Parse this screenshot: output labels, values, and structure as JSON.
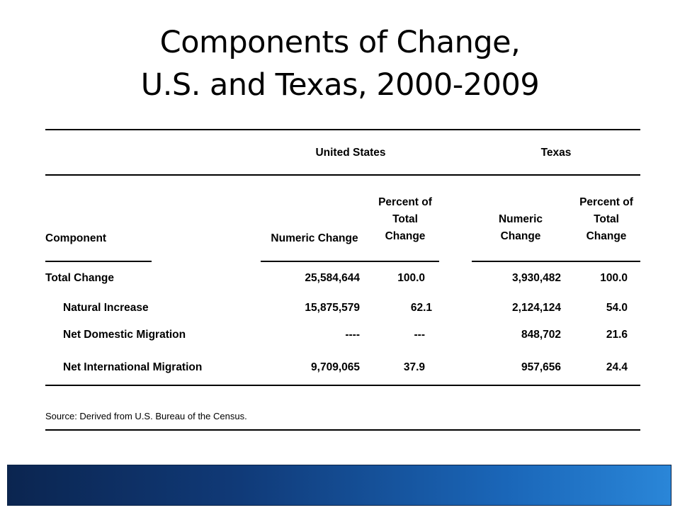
{
  "title": {
    "line1": "Components of Change,",
    "line2": "U.S. and Texas, 2000-2009"
  },
  "table": {
    "group_headers": {
      "us": "United States",
      "tx": "Texas"
    },
    "col_headers": {
      "component": "Component",
      "us_numeric": "Numeric Change",
      "us_pct": [
        "Percent of",
        "Total",
        "Change"
      ],
      "tx_numeric": [
        "Numeric",
        "Change"
      ],
      "tx_pct": [
        "Percent of",
        "Total",
        "Change"
      ]
    },
    "rows": [
      {
        "component": "Total Change",
        "us_numeric": "25,584,644",
        "us_pct": "100.0",
        "tx_numeric": "3,930,482",
        "tx_pct": "100.0"
      },
      {
        "component": "Natural Increase",
        "us_numeric": "15,875,579",
        "us_pct": "62.1",
        "tx_numeric": "2,124,124",
        "tx_pct": "54.0"
      },
      {
        "component": "Net Domestic Migration",
        "us_numeric": "----",
        "us_pct": "---",
        "tx_numeric": "848,702",
        "tx_pct": "21.6"
      },
      {
        "component": "Net International Migration",
        "us_numeric": "9,709,065",
        "us_pct": "37.9",
        "tx_numeric": "957,656",
        "tx_pct": "24.4"
      }
    ]
  },
  "source": "Source: Derived from U.S. Bureau of the Census."
}
